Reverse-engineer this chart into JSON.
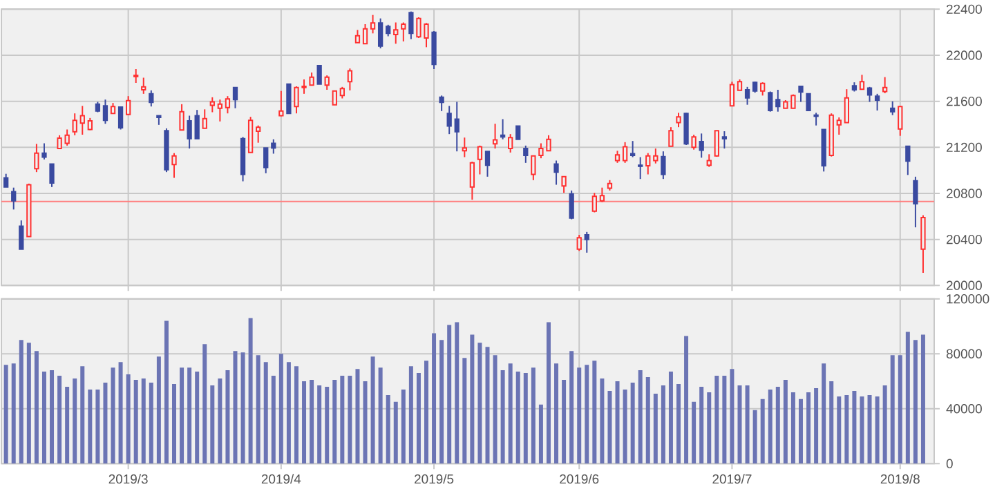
{
  "chart_data": [
    {
      "type": "candlestick",
      "categories": [
        null,
        null,
        null,
        null,
        null,
        null,
        null,
        null,
        null,
        null,
        null,
        null,
        null,
        null,
        null,
        null,
        "2019/3",
        null,
        null,
        null,
        null,
        null,
        null,
        null,
        null,
        null,
        null,
        null,
        null,
        null,
        null,
        null,
        null,
        null,
        null,
        null,
        "2019/4",
        null,
        null,
        null,
        null,
        null,
        null,
        null,
        null,
        null,
        null,
        null,
        null,
        null,
        null,
        null,
        null,
        null,
        null,
        null,
        "2019/5",
        null,
        null,
        null,
        null,
        null,
        null,
        null,
        null,
        null,
        null,
        null,
        null,
        null,
        null,
        null,
        null,
        null,
        null,
        "2019/6",
        null,
        null,
        null,
        null,
        null,
        null,
        null,
        null,
        null,
        null,
        null,
        null,
        null,
        null,
        null,
        null,
        null,
        null,
        null,
        "2019/7",
        null,
        null,
        null,
        null,
        null,
        null,
        null,
        null,
        null,
        null,
        null,
        null,
        null,
        null,
        null,
        null,
        null,
        null,
        null,
        null,
        null,
        "2019/8",
        null,
        null,
        null
      ],
      "ohlc": [
        [
          20935,
          20970,
          20855,
          20855
        ],
        [
          20815,
          20850,
          20660,
          20735
        ],
        [
          20515,
          20565,
          20315,
          20315
        ],
        [
          20425,
          20885,
          20425,
          20875
        ],
        [
          21015,
          21230,
          20985,
          21150
        ],
        [
          21150,
          21235,
          21095,
          21115
        ],
        [
          21055,
          21055,
          20855,
          20890
        ],
        [
          21190,
          21305,
          21190,
          21280
        ],
        [
          21235,
          21355,
          21215,
          21305
        ],
        [
          21335,
          21495,
          21305,
          21435
        ],
        [
          21410,
          21560,
          21310,
          21475
        ],
        [
          21355,
          21455,
          21350,
          21430
        ],
        [
          21575,
          21595,
          21505,
          21515
        ],
        [
          21560,
          21615,
          21405,
          21435
        ],
        [
          21495,
          21585,
          21495,
          21555
        ],
        [
          21550,
          21550,
          21355,
          21370
        ],
        [
          21485,
          21645,
          21485,
          21605
        ],
        [
          21815,
          21880,
          21760,
          21825
        ],
        [
          21700,
          21805,
          21665,
          21725
        ],
        [
          21665,
          21695,
          21555,
          21590
        ],
        [
          21475,
          21475,
          21395,
          21460
        ],
        [
          21345,
          21365,
          20985,
          21005
        ],
        [
          21050,
          21150,
          20935,
          21125
        ],
        [
          21350,
          21575,
          21350,
          21510
        ],
        [
          21430,
          21475,
          21190,
          21275
        ],
        [
          21475,
          21525,
          21275,
          21275
        ],
        [
          21365,
          21530,
          21365,
          21450
        ],
        [
          21565,
          21635,
          21505,
          21595
        ],
        [
          21540,
          21615,
          21425,
          21575
        ],
        [
          21545,
          21645,
          21495,
          21620
        ],
        [
          21720,
          21720,
          21540,
          21615
        ],
        [
          21275,
          21290,
          20905,
          20965
        ],
        [
          21155,
          21465,
          21155,
          21435
        ],
        [
          21340,
          21390,
          21240,
          21375
        ],
        [
          21195,
          21195,
          20975,
          21025
        ],
        [
          21235,
          21270,
          21145,
          21195
        ],
        [
          21475,
          21690,
          21470,
          21515
        ],
        [
          21750,
          21750,
          21495,
          21495
        ],
        [
          21555,
          21730,
          21495,
          21720
        ],
        [
          21720,
          21790,
          21665,
          21730
        ],
        [
          21740,
          21850,
          21740,
          21810
        ],
        [
          21910,
          21910,
          21750,
          21750
        ],
        [
          21740,
          21825,
          21700,
          21810
        ],
        [
          21570,
          21690,
          21570,
          21690
        ],
        [
          21650,
          21725,
          21625,
          21710
        ],
        [
          21770,
          21885,
          21695,
          21865
        ],
        [
          22110,
          22220,
          22110,
          22170
        ],
        [
          22100,
          22270,
          22100,
          22230
        ],
        [
          22230,
          22350,
          22190,
          22280
        ],
        [
          22280,
          22320,
          22060,
          22080
        ],
        [
          22250,
          22265,
          22165,
          22190
        ],
        [
          22180,
          22285,
          22100,
          22220
        ],
        [
          22230,
          22285,
          22120,
          22270
        ],
        [
          22370,
          22380,
          22140,
          22190
        ],
        [
          22160,
          22330,
          22150,
          22320
        ],
        [
          22150,
          22280,
          22070,
          22270
        ],
        [
          22200,
          22210,
          21880,
          21920
        ],
        [
          21635,
          21650,
          21515,
          21590
        ],
        [
          21495,
          21560,
          21315,
          21385
        ],
        [
          21445,
          21595,
          21165,
          21335
        ],
        [
          21170,
          21285,
          21115,
          21195
        ],
        [
          20855,
          21075,
          20745,
          21065
        ],
        [
          21095,
          21215,
          20965,
          21205
        ],
        [
          21165,
          21165,
          20945,
          21045
        ],
        [
          21230,
          21405,
          21190,
          21265
        ],
        [
          21305,
          21445,
          21270,
          21290
        ],
        [
          21190,
          21315,
          21155,
          21285
        ],
        [
          21385,
          21385,
          21270,
          21270
        ],
        [
          21190,
          21215,
          21065,
          21130
        ],
        [
          20965,
          21125,
          20915,
          21125
        ],
        [
          21130,
          21235,
          21105,
          21190
        ],
        [
          21170,
          21305,
          21170,
          21270
        ],
        [
          21055,
          21085,
          20875,
          20985
        ],
        [
          20865,
          20945,
          20805,
          20945
        ],
        [
          20795,
          20825,
          20575,
          20585
        ],
        [
          20315,
          20440,
          20300,
          20415
        ],
        [
          20440,
          20465,
          20285,
          20400
        ],
        [
          20645,
          20805,
          20635,
          20775
        ],
        [
          20735,
          20850,
          20725,
          20780
        ],
        [
          20845,
          20915,
          20825,
          20885
        ],
        [
          21085,
          21170,
          21065,
          21135
        ],
        [
          21085,
          21245,
          21065,
          21205
        ],
        [
          21145,
          21255,
          21115,
          21130
        ],
        [
          21045,
          21115,
          20925,
          21035
        ],
        [
          21040,
          21150,
          20965,
          21125
        ],
        [
          21085,
          21190,
          21060,
          21125
        ],
        [
          21120,
          21165,
          20925,
          20965
        ],
        [
          21210,
          21375,
          21210,
          21345
        ],
        [
          21415,
          21500,
          21375,
          21465
        ],
        [
          21495,
          21500,
          21220,
          21230
        ],
        [
          21200,
          21310,
          21180,
          21290
        ],
        [
          21250,
          21320,
          21110,
          21175
        ],
        [
          21045,
          21140,
          21030,
          21085
        ],
        [
          21125,
          21345,
          21120,
          21345
        ],
        [
          21290,
          21340,
          21190,
          21275
        ],
        [
          21560,
          21770,
          21560,
          21745
        ],
        [
          21695,
          21790,
          21695,
          21770
        ],
        [
          21700,
          21725,
          21570,
          21630
        ],
        [
          21765,
          21770,
          21675,
          21690
        ],
        [
          21690,
          21765,
          21650,
          21755
        ],
        [
          21675,
          21685,
          21510,
          21520
        ],
        [
          21615,
          21700,
          21510,
          21555
        ],
        [
          21540,
          21610,
          21540,
          21595
        ],
        [
          21540,
          21660,
          21540,
          21650
        ],
        [
          21730,
          21730,
          21595,
          21680
        ],
        [
          21665,
          21670,
          21520,
          21520
        ],
        [
          21480,
          21500,
          21390,
          21470
        ],
        [
          21355,
          21355,
          20990,
          21040
        ],
        [
          21130,
          21495,
          21120,
          21480
        ],
        [
          21395,
          21460,
          21310,
          21435
        ],
        [
          21415,
          21705,
          21415,
          21630
        ],
        [
          21735,
          21765,
          21685,
          21700
        ],
        [
          21705,
          21830,
          21705,
          21770
        ],
        [
          21715,
          21725,
          21595,
          21655
        ],
        [
          21645,
          21665,
          21520,
          21610
        ],
        [
          21685,
          21810,
          21670,
          21720
        ],
        [
          21540,
          21600,
          21480,
          21510
        ],
        [
          21360,
          21560,
          21300,
          21555
        ],
        [
          21210,
          21210,
          20960,
          21080
        ],
        [
          20910,
          20945,
          20505,
          20710
        ],
        [
          20315,
          20610,
          20110,
          20590
        ]
      ],
      "colors": [
        "#3a4aa0",
        "#3a4aa0",
        "#3a4aa0",
        "#ff3030",
        "#ff3030",
        "#3a4aa0",
        "#3a4aa0",
        "#ff3030",
        "#ff3030",
        "#ff3030",
        "#ff3030",
        "#ff3030",
        "#3a4aa0",
        "#3a4aa0",
        "#ff3030",
        "#3a4aa0",
        "#ff3030",
        "#ff3030",
        "#ff3030",
        "#3a4aa0",
        "#3a4aa0",
        "#3a4aa0",
        "#ff3030",
        "#ff3030",
        "#3a4aa0",
        "#3a4aa0",
        "#ff3030",
        "#ff3030",
        "#ff3030",
        "#ff3030",
        "#3a4aa0",
        "#3a4aa0",
        "#ff3030",
        "#ff3030",
        "#3a4aa0",
        "#3a4aa0",
        "#ff3030",
        "#3a4aa0",
        "#ff3030",
        "#ff3030",
        "#ff3030",
        "#3a4aa0",
        "#ff3030",
        "#ff3030",
        "#ff3030",
        "#ff3030",
        "#ff3030",
        "#ff3030",
        "#ff3030",
        "#3a4aa0",
        "#3a4aa0",
        "#ff3030",
        "#ff3030",
        "#3a4aa0",
        "#ff3030",
        "#ff3030",
        "#3a4aa0",
        "#3a4aa0",
        "#3a4aa0",
        "#3a4aa0",
        "#ff3030",
        "#ff3030",
        "#ff3030",
        "#3a4aa0",
        "#ff3030",
        "#3a4aa0",
        "#ff3030",
        "#3a4aa0",
        "#3a4aa0",
        "#ff3030",
        "#ff3030",
        "#ff3030",
        "#3a4aa0",
        "#ff3030",
        "#3a4aa0",
        "#ff3030",
        "#3a4aa0",
        "#ff3030",
        "#ff3030",
        "#ff3030",
        "#ff3030",
        "#ff3030",
        "#3a4aa0",
        "#3a4aa0",
        "#ff3030",
        "#ff3030",
        "#3a4aa0",
        "#ff3030",
        "#ff3030",
        "#3a4aa0",
        "#ff3030",
        "#3a4aa0",
        "#ff3030",
        "#ff3030",
        "#3a4aa0",
        "#ff3030",
        "#ff3030",
        "#3a4aa0",
        "#3a4aa0",
        "#ff3030",
        "#3a4aa0",
        "#3a4aa0",
        "#ff3030",
        "#ff3030",
        "#3a4aa0",
        "#3a4aa0",
        "#3a4aa0",
        "#3a4aa0",
        "#ff3030",
        "#ff3030",
        "#ff3030",
        "#3a4aa0",
        "#ff3030",
        "#3a4aa0",
        "#3a4aa0",
        "#ff3030",
        "#3a4aa0",
        "#ff3030",
        "#3a4aa0",
        "#3a4aa0",
        "#ff3030"
      ],
      "ylim": [
        20000,
        22400
      ],
      "yticks": [
        20000,
        20400,
        20800,
        21200,
        21600,
        22000,
        22400
      ],
      "grid": true,
      "tick_labels": "y",
      "ref_lines": [
        {
          "axis": "y",
          "value": 20730,
          "color": "#ff8080"
        }
      ]
    },
    {
      "type": "bar",
      "categories": [
        null,
        null,
        null,
        null,
        null,
        null,
        null,
        null,
        null,
        null,
        null,
        null,
        null,
        null,
        null,
        null,
        "2019/3",
        null,
        null,
        null,
        null,
        null,
        null,
        null,
        null,
        null,
        null,
        null,
        null,
        null,
        null,
        null,
        null,
        null,
        null,
        null,
        "2019/4",
        null,
        null,
        null,
        null,
        null,
        null,
        null,
        null,
        null,
        null,
        null,
        null,
        null,
        null,
        null,
        null,
        null,
        null,
        null,
        "2019/5",
        null,
        null,
        null,
        null,
        null,
        null,
        null,
        null,
        null,
        null,
        null,
        null,
        null,
        null,
        null,
        null,
        null,
        null,
        "2019/6",
        null,
        null,
        null,
        null,
        null,
        null,
        null,
        null,
        null,
        null,
        null,
        null,
        null,
        null,
        null,
        null,
        null,
        null,
        null,
        "2019/7",
        null,
        null,
        null,
        null,
        null,
        null,
        null,
        null,
        null,
        null,
        null,
        null,
        null,
        null,
        null,
        null,
        null,
        null,
        null,
        null,
        null,
        "2019/8",
        null,
        null,
        null
      ],
      "values": [
        72000,
        73000,
        90000,
        88000,
        82000,
        67000,
        68000,
        64000,
        56000,
        62000,
        71000,
        54000,
        54000,
        59000,
        70000,
        74000,
        65000,
        61000,
        62000,
        59000,
        78000,
        104000,
        58000,
        70000,
        70000,
        67000,
        87000,
        57000,
        62000,
        68000,
        82000,
        81000,
        106000,
        79000,
        74000,
        64000,
        80000,
        74000,
        71000,
        60000,
        61000,
        57000,
        56000,
        61000,
        64000,
        64000,
        69000,
        60000,
        78000,
        70000,
        50000,
        45000,
        54000,
        71000,
        66000,
        75000,
        95000,
        90000,
        101000,
        103000,
        77000,
        94000,
        88000,
        85000,
        79000,
        68000,
        73000,
        67000,
        66000,
        70000,
        43000,
        103000,
        73000,
        61000,
        82000,
        70000,
        72000,
        75000,
        62000,
        53000,
        60000,
        54000,
        59000,
        68000,
        63000,
        51000,
        57000,
        67000,
        58000,
        93000,
        45000,
        56000,
        52000,
        64000,
        64000,
        69000,
        57000,
        57000,
        39000,
        47000,
        54000,
        56000,
        61000,
        52000,
        47000,
        52000,
        55000,
        73000,
        60000,
        49000,
        50000,
        53000,
        49000,
        50000,
        49000,
        57000,
        79000,
        79000,
        96000,
        90000,
        94000
      ],
      "color": "#6b74b4",
      "ylim": [
        0,
        120000
      ],
      "yticks": [
        0,
        40000,
        80000,
        120000
      ],
      "grid": true
    }
  ]
}
